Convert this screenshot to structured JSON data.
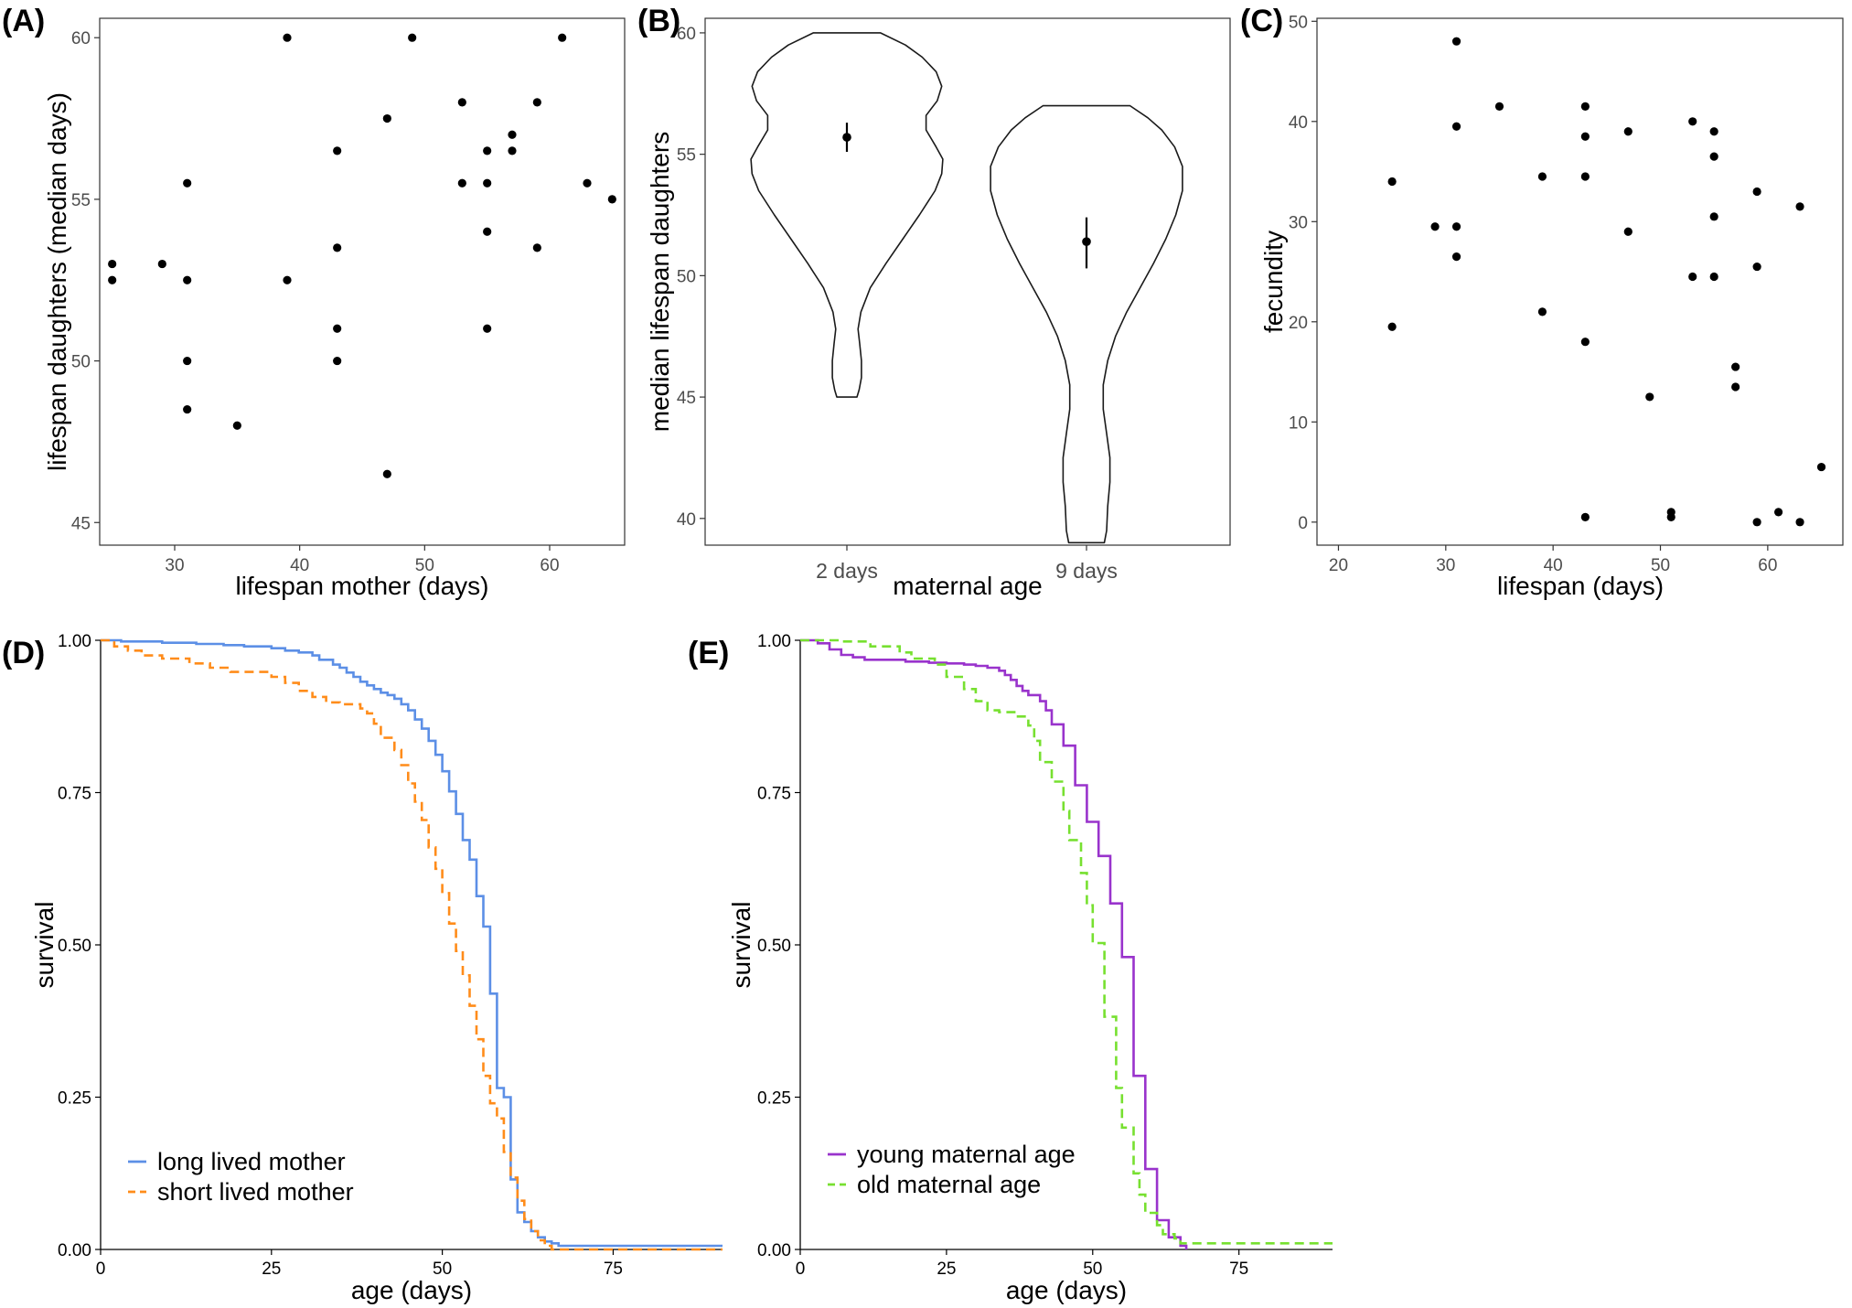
{
  "figure": {
    "panel_labels": [
      "(A)",
      "(B)",
      "(C)",
      "(D)",
      "(E)"
    ]
  },
  "chart_data": [
    {
      "id": "A",
      "type": "scatter",
      "xlabel": "lifespan mother (days)",
      "ylabel": "lifespan daughters (median days)",
      "xlim": [
        24,
        66
      ],
      "ylim": [
        44.3,
        60.6
      ],
      "xticks": [
        30,
        40,
        50,
        60
      ],
      "yticks": [
        45,
        50,
        55,
        60
      ],
      "grid": false,
      "color": "#000000",
      "points": [
        [
          25,
          53
        ],
        [
          25,
          52.5
        ],
        [
          29,
          53
        ],
        [
          31,
          55.5
        ],
        [
          31,
          52.5
        ],
        [
          31,
          50
        ],
        [
          31,
          48.5
        ],
        [
          35,
          48
        ],
        [
          39,
          60
        ],
        [
          39,
          52.5
        ],
        [
          43,
          56.5
        ],
        [
          43,
          53.5
        ],
        [
          43,
          51
        ],
        [
          43,
          50
        ],
        [
          47,
          57.5
        ],
        [
          47,
          46.5
        ],
        [
          49,
          60
        ],
        [
          53,
          58
        ],
        [
          53,
          55.5
        ],
        [
          55,
          56.5
        ],
        [
          55,
          55.5
        ],
        [
          55,
          54
        ],
        [
          55,
          51
        ],
        [
          57,
          57
        ],
        [
          57,
          56.5
        ],
        [
          59,
          58
        ],
        [
          59,
          53.5
        ],
        [
          61,
          60
        ],
        [
          63,
          55.5
        ],
        [
          65,
          55
        ]
      ]
    },
    {
      "id": "B",
      "type": "violin",
      "xlabel": "maternal age",
      "ylabel": "median lifespan daughters",
      "categories": [
        "2 days",
        "9 days"
      ],
      "ylim": [
        38.9,
        60.6
      ],
      "yticks": [
        40,
        45,
        50,
        55,
        60
      ],
      "grid": false,
      "summaries": [
        {
          "category": "2 days",
          "mean": 55.7,
          "lower": 55.1,
          "upper": 56.3,
          "min": 45,
          "max": 60
        },
        {
          "category": "9 days",
          "mean": 51.4,
          "lower": 50.3,
          "upper": 52.4,
          "min": 39,
          "max": 57
        }
      ],
      "densities": [
        [
          [
            45,
            0.18
          ],
          [
            45.3,
            0.22
          ],
          [
            45.8,
            0.26
          ],
          [
            46.5,
            0.26
          ],
          [
            47.2,
            0.23
          ],
          [
            47.8,
            0.2
          ],
          [
            48.5,
            0.25
          ],
          [
            49.5,
            0.42
          ],
          [
            50.5,
            0.7
          ],
          [
            51.5,
            1.0
          ],
          [
            52.5,
            1.3
          ],
          [
            53.5,
            1.58
          ],
          [
            54.2,
            1.7
          ],
          [
            54.8,
            1.72
          ],
          [
            55.3,
            1.6
          ],
          [
            56,
            1.42
          ],
          [
            56.6,
            1.42
          ],
          [
            57.2,
            1.62
          ],
          [
            57.8,
            1.7
          ],
          [
            58.4,
            1.6
          ],
          [
            59,
            1.35
          ],
          [
            59.5,
            1.05
          ],
          [
            60,
            0.6
          ]
        ],
        [
          [
            39,
            0.32
          ],
          [
            39.5,
            0.36
          ],
          [
            40.5,
            0.38
          ],
          [
            41.5,
            0.42
          ],
          [
            42.5,
            0.42
          ],
          [
            43.5,
            0.36
          ],
          [
            44.5,
            0.3
          ],
          [
            45.5,
            0.3
          ],
          [
            46.5,
            0.38
          ],
          [
            47.5,
            0.52
          ],
          [
            48.5,
            0.72
          ],
          [
            49.5,
            0.96
          ],
          [
            50.5,
            1.2
          ],
          [
            51.5,
            1.42
          ],
          [
            52.5,
            1.6
          ],
          [
            53.5,
            1.72
          ],
          [
            54.5,
            1.72
          ],
          [
            55.3,
            1.58
          ],
          [
            56,
            1.35
          ],
          [
            56.5,
            1.1
          ],
          [
            57,
            0.78
          ]
        ]
      ]
    },
    {
      "id": "C",
      "type": "scatter",
      "xlabel": "lifespan (days)",
      "ylabel": "fecundity",
      "xlim": [
        18,
        67
      ],
      "ylim": [
        -2.3,
        50.3
      ],
      "xticks": [
        20,
        30,
        40,
        50,
        60
      ],
      "yticks": [
        0,
        10,
        20,
        30,
        40,
        50
      ],
      "grid": false,
      "color": "#000000",
      "points": [
        [
          25,
          34
        ],
        [
          25,
          19.5
        ],
        [
          29,
          29.5
        ],
        [
          31,
          48
        ],
        [
          31,
          39.5
        ],
        [
          31,
          29.5
        ],
        [
          31,
          26.5
        ],
        [
          35,
          41.5
        ],
        [
          39,
          34.5
        ],
        [
          39,
          21
        ],
        [
          43,
          41.5
        ],
        [
          43,
          38.5
        ],
        [
          43,
          34.5
        ],
        [
          43,
          18
        ],
        [
          43,
          0.5
        ],
        [
          47,
          39
        ],
        [
          47,
          29
        ],
        [
          49,
          12.5
        ],
        [
          51,
          1
        ],
        [
          51,
          0.5
        ],
        [
          53,
          40
        ],
        [
          53,
          24.5
        ],
        [
          55,
          39
        ],
        [
          55,
          36.5
        ],
        [
          55,
          30.5
        ],
        [
          55,
          24.5
        ],
        [
          57,
          15.5
        ],
        [
          57,
          13.5
        ],
        [
          59,
          33
        ],
        [
          59,
          25.5
        ],
        [
          59,
          0
        ],
        [
          61,
          1
        ],
        [
          63,
          31.5
        ],
        [
          63,
          0
        ],
        [
          65,
          5.5
        ]
      ]
    },
    {
      "id": "D",
      "type": "line",
      "subtype": "kaplan-meier step",
      "xlabel": "age (days)",
      "ylabel": "survival",
      "xlim": [
        0,
        91
      ],
      "ylim": [
        0,
        1
      ],
      "xticks": [
        0,
        25,
        50,
        75
      ],
      "xtick_labels": [
        "0",
        "25",
        "50",
        "75"
      ],
      "yticks": [
        0,
        0.25,
        0.5,
        0.75,
        1
      ],
      "ytick_labels": [
        "0.00",
        "0.25",
        "0.50",
        "0.75",
        "1.00"
      ],
      "legend_position": "bottom-left",
      "series": [
        {
          "name": "long lived mother",
          "color": "#5c8fe6",
          "dash": "solid",
          "steps": [
            [
              0,
              1
            ],
            [
              3,
              0.998
            ],
            [
              9,
              0.996
            ],
            [
              14,
              0.994
            ],
            [
              18,
              0.992
            ],
            [
              21,
              0.99
            ],
            [
              25,
              0.987
            ],
            [
              27,
              0.983
            ],
            [
              29,
              0.98
            ],
            [
              31,
              0.975
            ],
            [
              32,
              0.968
            ],
            [
              34,
              0.96
            ],
            [
              35,
              0.955
            ],
            [
              36,
              0.947
            ],
            [
              37,
              0.94
            ],
            [
              38,
              0.932
            ],
            [
              39,
              0.926
            ],
            [
              40,
              0.92
            ],
            [
              41,
              0.914
            ],
            [
              42,
              0.91
            ],
            [
              43,
              0.904
            ],
            [
              44,
              0.895
            ],
            [
              45,
              0.885
            ],
            [
              46,
              0.87
            ],
            [
              47,
              0.855
            ],
            [
              48,
              0.835
            ],
            [
              49,
              0.812
            ],
            [
              50,
              0.785
            ],
            [
              51,
              0.752
            ],
            [
              52,
              0.715
            ],
            [
              53,
              0.672
            ],
            [
              54,
              0.64
            ],
            [
              55,
              0.58
            ],
            [
              56,
              0.53
            ],
            [
              57,
              0.42
            ],
            [
              58,
              0.265
            ],
            [
              59,
              0.25
            ],
            [
              60,
              0.115
            ],
            [
              61,
              0.061
            ],
            [
              62,
              0.045
            ],
            [
              63,
              0.03
            ],
            [
              64,
              0.02
            ],
            [
              65,
              0.013
            ],
            [
              66,
              0.01
            ],
            [
              67,
              0.006
            ],
            [
              91,
              0.006
            ]
          ]
        },
        {
          "name": "short lived mother",
          "color": "#ff8c1a",
          "dash": "dashed",
          "steps": [
            [
              0,
              1
            ],
            [
              2,
              0.99
            ],
            [
              4,
              0.983
            ],
            [
              6,
              0.975
            ],
            [
              9,
              0.97
            ],
            [
              13,
              0.962
            ],
            [
              16,
              0.955
            ],
            [
              19,
              0.948
            ],
            [
              25,
              0.94
            ],
            [
              27,
              0.93
            ],
            [
              29,
              0.917
            ],
            [
              31,
              0.907
            ],
            [
              33,
              0.898
            ],
            [
              35,
              0.895
            ],
            [
              38,
              0.888
            ],
            [
              39,
              0.88
            ],
            [
              40,
              0.863
            ],
            [
              41,
              0.84
            ],
            [
              43,
              0.82
            ],
            [
              44,
              0.795
            ],
            [
              45,
              0.765
            ],
            [
              46,
              0.735
            ],
            [
              47,
              0.705
            ],
            [
              48,
              0.66
            ],
            [
              49,
              0.625
            ],
            [
              50,
              0.585
            ],
            [
              51,
              0.535
            ],
            [
              52,
              0.49
            ],
            [
              53,
              0.45
            ],
            [
              54,
              0.4
            ],
            [
              55,
              0.345
            ],
            [
              56,
              0.285
            ],
            [
              57,
              0.24
            ],
            [
              58,
              0.215
            ],
            [
              59,
              0.16
            ],
            [
              60,
              0.118
            ],
            [
              61,
              0.08
            ],
            [
              62,
              0.05
            ],
            [
              63,
              0.03
            ],
            [
              64,
              0.015
            ],
            [
              65,
              0.006
            ],
            [
              66,
              0
            ],
            [
              91,
              0
            ]
          ]
        }
      ]
    },
    {
      "id": "E",
      "type": "line",
      "subtype": "kaplan-meier step",
      "xlabel": "age (days)",
      "ylabel": "survival",
      "xlim": [
        0,
        91
      ],
      "ylim": [
        0,
        1
      ],
      "xticks": [
        0,
        25,
        50,
        75
      ],
      "xtick_labels": [
        "0",
        "25",
        "50",
        "75"
      ],
      "yticks": [
        0,
        0.25,
        0.5,
        0.75,
        1
      ],
      "ytick_labels": [
        "0.00",
        "0.25",
        "0.50",
        "0.75",
        "1.00"
      ],
      "legend_position": "bottom-left",
      "series": [
        {
          "name": "young maternal age",
          "color": "#9933cc",
          "dash": "solid",
          "steps": [
            [
              0,
              1
            ],
            [
              3,
              0.995
            ],
            [
              5,
              0.985
            ],
            [
              7,
              0.976
            ],
            [
              9,
              0.972
            ],
            [
              11,
              0.968
            ],
            [
              18,
              0.965
            ],
            [
              22,
              0.963
            ],
            [
              25,
              0.962
            ],
            [
              28,
              0.96
            ],
            [
              30,
              0.958
            ],
            [
              32,
              0.955
            ],
            [
              34,
              0.95
            ],
            [
              35,
              0.943
            ],
            [
              36,
              0.935
            ],
            [
              37,
              0.925
            ],
            [
              38,
              0.917
            ],
            [
              39,
              0.91
            ],
            [
              41,
              0.9
            ],
            [
              42,
              0.885
            ],
            [
              43,
              0.862
            ],
            [
              45,
              0.827
            ],
            [
              47,
              0.762
            ],
            [
              49,
              0.702
            ],
            [
              51,
              0.646
            ],
            [
              53,
              0.568
            ],
            [
              55,
              0.48
            ],
            [
              57,
              0.285
            ],
            [
              59,
              0.132
            ],
            [
              61,
              0.048
            ],
            [
              63,
              0.02
            ],
            [
              65,
              0.006
            ],
            [
              66,
              0
            ]
          ]
        },
        {
          "name": "old maternal age",
          "color": "#77e030",
          "dash": "dashed",
          "steps": [
            [
              0,
              1
            ],
            [
              7,
              0.998
            ],
            [
              12,
              0.99
            ],
            [
              17,
              0.98
            ],
            [
              19,
              0.97
            ],
            [
              23,
              0.96
            ],
            [
              25,
              0.94
            ],
            [
              28,
              0.92
            ],
            [
              30,
              0.9
            ],
            [
              32,
              0.885
            ],
            [
              34,
              0.882
            ],
            [
              37,
              0.875
            ],
            [
              39,
              0.86
            ],
            [
              40,
              0.835
            ],
            [
              41,
              0.8
            ],
            [
              43,
              0.768
            ],
            [
              45,
              0.72
            ],
            [
              46,
              0.672
            ],
            [
              48,
              0.618
            ],
            [
              49,
              0.565
            ],
            [
              50,
              0.503
            ],
            [
              52,
              0.382
            ],
            [
              54,
              0.265
            ],
            [
              55,
              0.2
            ],
            [
              57,
              0.125
            ],
            [
              58,
              0.09
            ],
            [
              59,
              0.06
            ],
            [
              61,
              0.04
            ],
            [
              62,
              0.025
            ],
            [
              64,
              0.018
            ],
            [
              65,
              0.01
            ],
            [
              91,
              0.01
            ]
          ]
        }
      ]
    }
  ]
}
